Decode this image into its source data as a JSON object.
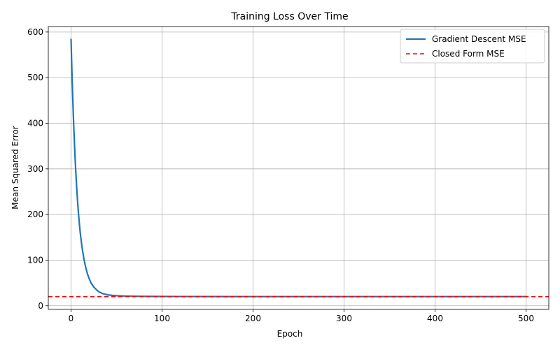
{
  "chart_data": {
    "type": "line",
    "title": "Training Loss Over Time",
    "xlabel": "Epoch",
    "ylabel": "Mean Squared Error",
    "xlim": [
      -25,
      525
    ],
    "ylim": [
      -8,
      612
    ],
    "xticks": [
      0,
      100,
      200,
      300,
      400,
      500
    ],
    "yticks": [
      0,
      100,
      200,
      300,
      400,
      500,
      600
    ],
    "xtick_labels": [
      "0",
      "100",
      "200",
      "300",
      "400",
      "500"
    ],
    "ytick_labels": [
      "0",
      "100",
      "200",
      "300",
      "400",
      "500",
      "600"
    ],
    "grid": true,
    "legend_position": "top-right",
    "series": [
      {
        "name": "Gradient Descent MSE",
        "style": "solid",
        "color": "#1f77b4",
        "x": [
          0,
          1,
          2,
          3,
          4,
          5,
          6,
          7,
          8,
          9,
          10,
          12,
          14,
          16,
          18,
          20,
          22,
          25,
          28,
          31,
          35,
          40,
          45,
          50,
          60,
          70,
          80,
          100,
          120,
          150,
          200,
          250,
          300,
          350,
          400,
          450,
          500
        ],
        "y": [
          584,
          510,
          447,
          392,
          344,
          302,
          266,
          234,
          206,
          183,
          162,
          129,
          104,
          85,
          70,
          59,
          50,
          41,
          35,
          30,
          26.5,
          24,
          22.8,
          22,
          21.2,
          20.8,
          20.5,
          20.3,
          20.2,
          20.1,
          20,
          20,
          20,
          20,
          20,
          20,
          20
        ]
      },
      {
        "name": "Closed Form MSE",
        "style": "dashed",
        "color": "#ff0000",
        "y": 20
      }
    ]
  }
}
